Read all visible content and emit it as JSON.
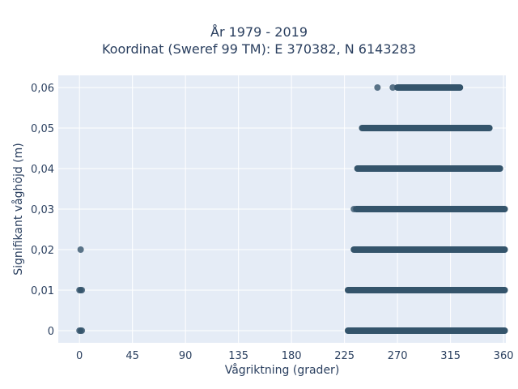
{
  "chart_data": {
    "type": "scatter",
    "title": "År 1979 - 2019",
    "subtitle": "Koordinat (Sweref 99 TM): E 370382, N 6143283",
    "xlabel": "Vågriktning (grader)",
    "ylabel": "Signifikant våghöjd (m)",
    "xlim": [
      -18,
      362
    ],
    "ylim": [
      -0.003,
      0.063
    ],
    "xticks": [
      0,
      45,
      90,
      135,
      180,
      225,
      270,
      315,
      360
    ],
    "xtick_labels": [
      "0",
      "45",
      "90",
      "135",
      "180",
      "225",
      "270",
      "315",
      "360"
    ],
    "yticks": [
      0,
      0.01,
      0.02,
      0.03,
      0.04,
      0.05,
      0.06
    ],
    "ytick_labels": [
      "0",
      "0,01",
      "0,02",
      "0,03",
      "0,04",
      "0,05",
      "0,06"
    ],
    "grid": true,
    "marker_color": "#34546b",
    "background_color": "#e5ecf6",
    "series": [
      {
        "points": [
          {
            "x": 0,
            "y": 0
          },
          {
            "x": 1,
            "y": 0
          },
          {
            "x": 2,
            "y": 0
          },
          {
            "x": 0,
            "y": 0.01
          },
          {
            "x": 1,
            "y": 0.01
          },
          {
            "x": 2,
            "y": 0.01
          },
          {
            "x": 1,
            "y": 0.02
          },
          {
            "x": 253,
            "y": 0.06
          },
          {
            "x": 266,
            "y": 0.06
          },
          {
            "x": 233,
            "y": 0.03
          }
        ],
        "bands": [
          {
            "y": 0,
            "x_from": 228,
            "x_to": 361
          },
          {
            "y": 0.01,
            "x_from": 228,
            "x_to": 361
          },
          {
            "y": 0.02,
            "x_from": 233,
            "x_to": 361
          },
          {
            "y": 0.03,
            "x_from": 235,
            "x_to": 361
          },
          {
            "y": 0.04,
            "x_from": 236,
            "x_to": 357
          },
          {
            "y": 0.05,
            "x_from": 240,
            "x_to": 348
          },
          {
            "y": 0.06,
            "x_from": 270,
            "x_to": 323
          }
        ]
      }
    ]
  }
}
